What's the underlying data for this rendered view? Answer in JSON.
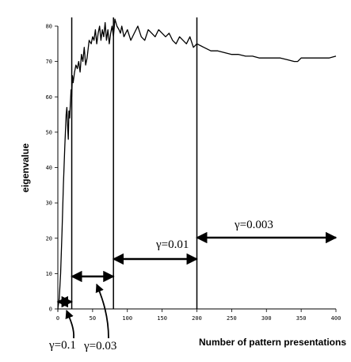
{
  "chart_data": {
    "type": "line",
    "title": "",
    "xlabel": "Number of pattern presentations",
    "ylabel": "eigenvalue",
    "xlim": [
      0,
      400
    ],
    "ylim": [
      0,
      80
    ],
    "x_ticks": [
      0,
      50,
      100,
      150,
      200,
      250,
      300,
      350,
      400
    ],
    "y_ticks": [
      0,
      10,
      20,
      30,
      40,
      50,
      60,
      70,
      80
    ],
    "grid": false,
    "series": [
      {
        "name": "",
        "x": [
          0,
          2,
          4,
          6,
          8,
          10,
          12,
          13,
          14,
          15,
          16,
          17,
          18,
          19,
          20,
          21,
          22,
          24,
          26,
          28,
          30,
          32,
          34,
          36,
          38,
          40,
          42,
          45,
          48,
          50,
          52,
          54,
          56,
          58,
          60,
          62,
          64,
          66,
          68,
          70,
          72,
          74,
          76,
          78,
          80,
          82,
          85,
          88,
          90,
          92,
          95,
          100,
          105,
          110,
          115,
          120,
          125,
          130,
          135,
          140,
          145,
          150,
          155,
          160,
          165,
          170,
          175,
          180,
          185,
          190,
          195,
          200,
          210,
          220,
          230,
          240,
          250,
          260,
          270,
          280,
          290,
          300,
          310,
          320,
          330,
          340,
          345,
          350,
          360,
          370,
          380,
          390,
          400
        ],
        "y": [
          0,
          3,
          10,
          22,
          35,
          46,
          55,
          57,
          52,
          48,
          56,
          54,
          58,
          62,
          60,
          66,
          64,
          67,
          69,
          68,
          70,
          67,
          72,
          70,
          74,
          69,
          71,
          76,
          75,
          77,
          76,
          79,
          75,
          78,
          80,
          76,
          79,
          77,
          81,
          76,
          79,
          75,
          78,
          80,
          77,
          82,
          80,
          79,
          78,
          80,
          77,
          79,
          76,
          78,
          80,
          77,
          76,
          79,
          78,
          77,
          79,
          78,
          77,
          78,
          76,
          75,
          77,
          76,
          75,
          77,
          74,
          75,
          74,
          73,
          73,
          72.5,
          72,
          72,
          71.5,
          71.5,
          71,
          71,
          71,
          71,
          70.5,
          70,
          70,
          71,
          71,
          71,
          71,
          71,
          71.5
        ]
      }
    ],
    "phase_boundaries": [
      0,
      20,
      80,
      200,
      400
    ],
    "phases": [
      {
        "label": "γ=0.1",
        "from": 0,
        "to": 20
      },
      {
        "label": "γ=0.03",
        "from": 20,
        "to": 80
      },
      {
        "label": "γ=0.01",
        "from": 80,
        "to": 200
      },
      {
        "label": "γ=0.003",
        "from": 200,
        "to": 400
      }
    ]
  }
}
